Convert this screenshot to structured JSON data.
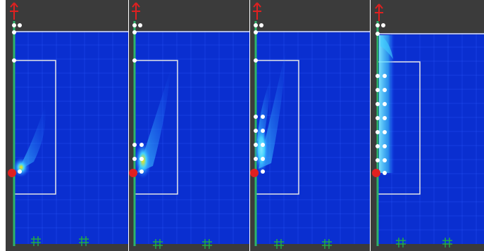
{
  "figure": {
    "panel_count": 4,
    "colors": {
      "frame_background": "#3b3b3b",
      "field_background": "#0a2fd0",
      "grid": "#2a5cff",
      "boundary_box": "#e6e6e6",
      "wall": "#2db36b",
      "node": "#ffffff",
      "source_marker": "#e02020",
      "arrow": "#e02020",
      "ground_marker": "#22aa44",
      "plume_low": "#1a5cff",
      "plume_mid": "#40d0ff",
      "plume_high": "#ffe600"
    },
    "icons": [
      "arrow-glyph-icon",
      "source-marker-icon",
      "ground-marker-icon"
    ],
    "panels": [
      {
        "id": 1,
        "nodes_on_wall": 1,
        "plume_level": "low"
      },
      {
        "id": 2,
        "nodes_on_wall": 3,
        "plume_level": "medium"
      },
      {
        "id": 3,
        "nodes_on_wall": 5,
        "plume_level": "medium"
      },
      {
        "id": 4,
        "nodes_on_wall": 12,
        "plume_level": "high"
      }
    ]
  }
}
